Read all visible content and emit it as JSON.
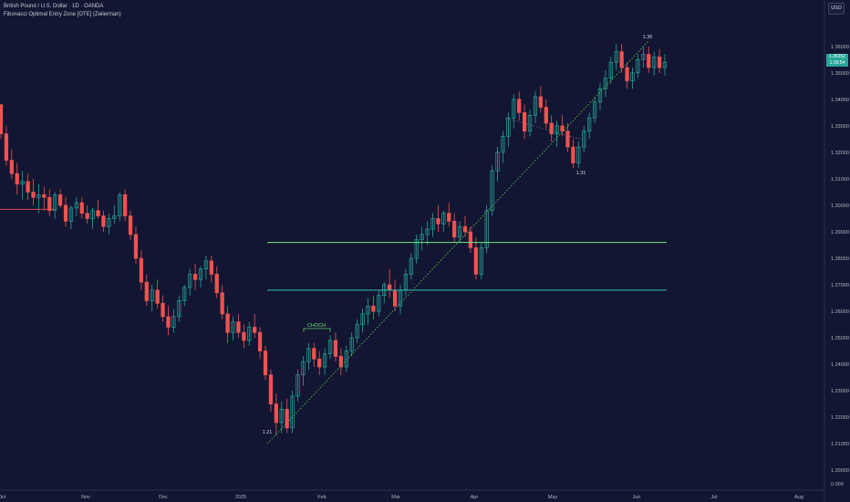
{
  "header": {
    "symbol_line": "British Pound / U.S. Dollar · 1D · OANDA",
    "indicator_line": "Fibonacci Optimal Entry Zone [OTE] (Zeiierman)"
  },
  "toolbar": {
    "currency_label": "USD"
  },
  "price_scale": {
    "last_price_label": "1.35352",
    "countdown_label": "1:36:54",
    "last_price_color": "#26a69a"
  },
  "colors": {
    "background": "#131632",
    "bull": "#26a69a",
    "bear": "#ef5350",
    "fib_upper": "#6ee87a",
    "fib_lower": "#2ec4b6",
    "trend": "#4caf50",
    "grid_text": "#b2b5be"
  },
  "chart_data": {
    "type": "candlestick",
    "y_axis": {
      "range": [
        1.1925,
        1.3775
      ],
      "ticks": [
        "1.36000",
        "1.35000",
        "1.34000",
        "1.33000",
        "1.32000",
        "1.31000",
        "1.30000",
        "1.29000",
        "1.28000",
        "1.27000",
        "1.26000",
        "1.25000",
        "1.24000",
        "1.23000",
        "1.22000",
        "1.21000",
        "1.20000"
      ],
      "bottom_label": "0.000"
    },
    "x_axis": {
      "ticks": [
        "Oct",
        "Nov",
        "Dec",
        "2025",
        "Feb",
        "Mar",
        "Apr",
        "May",
        "Jun",
        "Jul",
        "Aug"
      ]
    },
    "candles": [
      [
        1.338,
        1.338,
        1.325,
        1.327
      ],
      [
        1.327,
        1.33,
        1.315,
        1.317
      ],
      [
        1.317,
        1.321,
        1.31,
        1.312
      ],
      [
        1.312,
        1.316,
        1.304,
        1.308
      ],
      [
        1.308,
        1.313,
        1.302,
        1.309
      ],
      [
        1.309,
        1.312,
        1.302,
        1.305
      ],
      [
        1.305,
        1.31,
        1.3,
        1.303
      ],
      [
        1.303,
        1.308,
        1.297,
        1.304
      ],
      [
        1.304,
        1.307,
        1.298,
        1.303
      ],
      [
        1.303,
        1.306,
        1.296,
        1.298
      ],
      [
        1.298,
        1.305,
        1.295,
        1.304
      ],
      [
        1.304,
        1.306,
        1.299,
        1.3
      ],
      [
        1.3,
        1.303,
        1.292,
        1.294
      ],
      [
        1.294,
        1.3,
        1.291,
        1.299
      ],
      [
        1.299,
        1.303,
        1.296,
        1.301
      ],
      [
        1.301,
        1.303,
        1.295,
        1.297
      ],
      [
        1.297,
        1.3,
        1.293,
        1.295
      ],
      [
        1.295,
        1.299,
        1.291,
        1.298
      ],
      [
        1.298,
        1.302,
        1.295,
        1.296
      ],
      [
        1.296,
        1.298,
        1.29,
        1.292
      ],
      [
        1.292,
        1.297,
        1.289,
        1.295
      ],
      [
        1.295,
        1.3,
        1.293,
        1.296
      ],
      [
        1.296,
        1.305,
        1.294,
        1.304
      ],
      [
        1.304,
        1.306,
        1.294,
        1.296
      ],
      [
        1.296,
        1.298,
        1.287,
        1.289
      ],
      [
        1.289,
        1.292,
        1.278,
        1.28
      ],
      [
        1.28,
        1.283,
        1.268,
        1.271
      ],
      [
        1.271,
        1.274,
        1.262,
        1.264
      ],
      [
        1.264,
        1.27,
        1.26,
        1.268
      ],
      [
        1.268,
        1.272,
        1.261,
        1.263
      ],
      [
        1.263,
        1.266,
        1.256,
        1.258
      ],
      [
        1.258,
        1.262,
        1.251,
        1.254
      ],
      [
        1.254,
        1.261,
        1.252,
        1.258
      ],
      [
        1.258,
        1.266,
        1.256,
        1.264
      ],
      [
        1.264,
        1.27,
        1.262,
        1.269
      ],
      [
        1.269,
        1.276,
        1.266,
        1.274
      ],
      [
        1.274,
        1.278,
        1.268,
        1.272
      ],
      [
        1.272,
        1.277,
        1.269,
        1.276
      ],
      [
        1.276,
        1.281,
        1.272,
        1.279
      ],
      [
        1.279,
        1.281,
        1.271,
        1.274
      ],
      [
        1.274,
        1.277,
        1.265,
        1.267
      ],
      [
        1.267,
        1.27,
        1.257,
        1.259
      ],
      [
        1.259,
        1.262,
        1.248,
        1.252
      ],
      [
        1.252,
        1.258,
        1.249,
        1.256
      ],
      [
        1.256,
        1.259,
        1.25,
        1.252
      ],
      [
        1.252,
        1.255,
        1.246,
        1.249
      ],
      [
        1.249,
        1.256,
        1.247,
        1.254
      ],
      [
        1.254,
        1.259,
        1.25,
        1.252
      ],
      [
        1.252,
        1.254,
        1.242,
        1.245
      ],
      [
        1.245,
        1.247,
        1.234,
        1.236
      ],
      [
        1.236,
        1.238,
        1.222,
        1.225
      ],
      [
        1.225,
        1.229,
        1.213,
        1.218
      ],
      [
        1.218,
        1.226,
        1.214,
        1.223
      ],
      [
        1.223,
        1.227,
        1.214,
        1.216
      ],
      [
        1.216,
        1.23,
        1.214,
        1.228
      ],
      [
        1.228,
        1.238,
        1.226,
        1.236
      ],
      [
        1.236,
        1.243,
        1.232,
        1.241
      ],
      [
        1.241,
        1.248,
        1.238,
        1.246
      ],
      [
        1.246,
        1.248,
        1.239,
        1.242
      ],
      [
        1.242,
        1.245,
        1.236,
        1.239
      ],
      [
        1.239,
        1.246,
        1.236,
        1.244
      ],
      [
        1.244,
        1.251,
        1.242,
        1.249
      ],
      [
        1.249,
        1.252,
        1.241,
        1.243
      ],
      [
        1.243,
        1.246,
        1.236,
        1.239
      ],
      [
        1.239,
        1.247,
        1.237,
        1.245
      ],
      [
        1.245,
        1.252,
        1.243,
        1.25
      ],
      [
        1.25,
        1.257,
        1.248,
        1.255
      ],
      [
        1.255,
        1.261,
        1.252,
        1.259
      ],
      [
        1.259,
        1.265,
        1.255,
        1.262
      ],
      [
        1.262,
        1.266,
        1.257,
        1.26
      ],
      [
        1.26,
        1.268,
        1.258,
        1.266
      ],
      [
        1.266,
        1.271,
        1.263,
        1.27
      ],
      [
        1.27,
        1.276,
        1.265,
        1.268
      ],
      [
        1.268,
        1.272,
        1.26,
        1.262
      ],
      [
        1.262,
        1.27,
        1.259,
        1.268
      ],
      [
        1.268,
        1.276,
        1.266,
        1.274
      ],
      [
        1.274,
        1.282,
        1.272,
        1.28
      ],
      [
        1.28,
        1.289,
        1.278,
        1.287
      ],
      [
        1.287,
        1.292,
        1.283,
        1.289
      ],
      [
        1.289,
        1.294,
        1.285,
        1.291
      ],
      [
        1.291,
        1.297,
        1.288,
        1.295
      ],
      [
        1.295,
        1.3,
        1.29,
        1.293
      ],
      [
        1.293,
        1.298,
        1.29,
        1.297
      ],
      [
        1.297,
        1.301,
        1.292,
        1.294
      ],
      [
        1.294,
        1.297,
        1.286,
        1.288
      ],
      [
        1.288,
        1.294,
        1.286,
        1.292
      ],
      [
        1.292,
        1.296,
        1.288,
        1.29
      ],
      [
        1.29,
        1.292,
        1.282,
        1.284
      ],
      [
        1.284,
        1.288,
        1.272,
        1.274
      ],
      [
        1.274,
        1.286,
        1.272,
        1.284
      ],
      [
        1.284,
        1.3,
        1.282,
        1.298
      ],
      [
        1.298,
        1.315,
        1.296,
        1.313
      ],
      [
        1.313,
        1.322,
        1.309,
        1.32
      ],
      [
        1.32,
        1.328,
        1.316,
        1.326
      ],
      [
        1.326,
        1.335,
        1.322,
        1.333
      ],
      [
        1.333,
        1.342,
        1.329,
        1.34
      ],
      [
        1.34,
        1.343,
        1.332,
        1.335
      ],
      [
        1.335,
        1.338,
        1.325,
        1.328
      ],
      [
        1.328,
        1.336,
        1.326,
        1.334
      ],
      [
        1.334,
        1.343,
        1.331,
        1.341
      ],
      [
        1.341,
        1.345,
        1.335,
        1.337
      ],
      [
        1.337,
        1.34,
        1.329,
        1.331
      ],
      [
        1.331,
        1.334,
        1.324,
        1.327
      ],
      [
        1.327,
        1.332,
        1.322,
        1.33
      ],
      [
        1.33,
        1.334,
        1.326,
        1.328
      ],
      [
        1.328,
        1.331,
        1.32,
        1.322
      ],
      [
        1.322,
        1.325,
        1.314,
        1.316
      ],
      [
        1.316,
        1.324,
        1.314,
        1.322
      ],
      [
        1.322,
        1.33,
        1.32,
        1.328
      ],
      [
        1.328,
        1.335,
        1.325,
        1.333
      ],
      [
        1.333,
        1.341,
        1.331,
        1.339
      ],
      [
        1.339,
        1.346,
        1.336,
        1.344
      ],
      [
        1.344,
        1.351,
        1.341,
        1.348
      ],
      [
        1.348,
        1.356,
        1.346,
        1.354
      ],
      [
        1.354,
        1.361,
        1.351,
        1.358
      ],
      [
        1.358,
        1.361,
        1.35,
        1.352
      ],
      [
        1.352,
        1.354,
        1.344,
        1.347
      ],
      [
        1.347,
        1.352,
        1.344,
        1.35
      ],
      [
        1.35,
        1.357,
        1.348,
        1.355
      ],
      [
        1.355,
        1.36,
        1.352,
        1.357
      ],
      [
        1.357,
        1.36,
        1.35,
        1.352
      ],
      [
        1.352,
        1.358,
        1.349,
        1.356
      ],
      [
        1.356,
        1.359,
        1.35,
        1.352
      ],
      [
        1.352,
        1.357,
        1.349,
        1.354
      ]
    ],
    "fib_zone": {
      "upper": 1.286,
      "lower": 1.268
    },
    "swing_low": {
      "price": 1.21,
      "label": "1.21"
    },
    "swing_high": {
      "price": 1.362,
      "label": "1.36"
    },
    "pullback_low": {
      "price": 1.314,
      "label": "1.31"
    },
    "annotation": {
      "label": "CHOCH"
    }
  }
}
